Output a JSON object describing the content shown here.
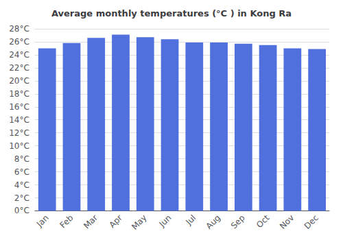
{
  "chart_data": {
    "type": "bar",
    "title": "Average monthly temperatures (°C ) in Kong Ra",
    "categories": [
      "Jan",
      "Feb",
      "Mar",
      "Apr",
      "May",
      "Jun",
      "Jul",
      "Aug",
      "Sep",
      "Oct",
      "Nov",
      "Dec"
    ],
    "values": [
      25.0,
      25.8,
      26.6,
      27.1,
      26.7,
      26.4,
      25.9,
      25.9,
      25.7,
      25.5,
      25.0,
      24.9
    ],
    "ylim": [
      0,
      28
    ],
    "yticks": [
      {
        "value": 0,
        "label": "0°C"
      },
      {
        "value": 2,
        "label": "2°C"
      },
      {
        "value": 4,
        "label": "4°C"
      },
      {
        "value": 6,
        "label": "6°C"
      },
      {
        "value": 8,
        "label": "8°C"
      },
      {
        "value": 10,
        "label": "10°C"
      },
      {
        "value": 12,
        "label": "12°C"
      },
      {
        "value": 14,
        "label": "14°C"
      },
      {
        "value": 16,
        "label": "16°C"
      },
      {
        "value": 18,
        "label": "18°C"
      },
      {
        "value": 20,
        "label": "20°C"
      },
      {
        "value": 22,
        "label": "22°C"
      },
      {
        "value": 24,
        "label": "24°C"
      },
      {
        "value": 26,
        "label": "26°C"
      },
      {
        "value": 28,
        "label": "28°C"
      }
    ],
    "grid": true
  }
}
